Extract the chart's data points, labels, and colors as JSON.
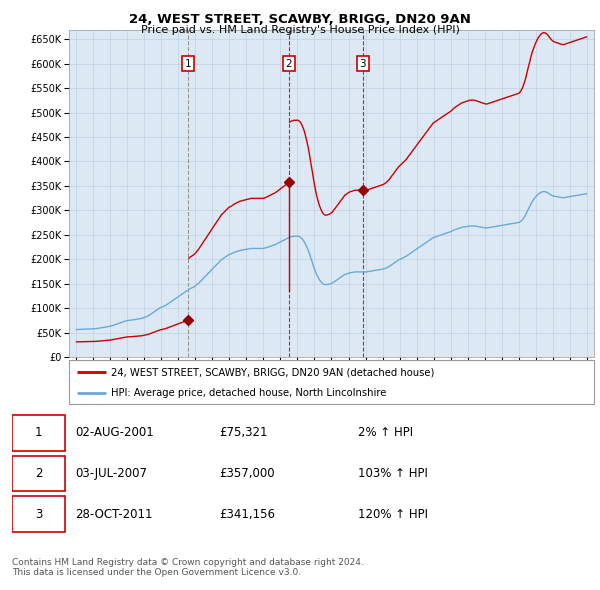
{
  "title": "24, WEST STREET, SCAWBY, BRIGG, DN20 9AN",
  "subtitle": "Price paid vs. HM Land Registry's House Price Index (HPI)",
  "plot_bg_color": "#dce9f5",
  "ylim": [
    0,
    670000
  ],
  "hpi_color": "#6aaad4",
  "price_color": "#cc0000",
  "sale_marker_color": "#990000",
  "grid_color": "#bbccdd",
  "sale_dates_num": [
    2001.58,
    2007.5,
    2011.83
  ],
  "sale_prices": [
    75321,
    357000,
    341156
  ],
  "sale_labels": [
    "1",
    "2",
    "3"
  ],
  "vline1_color": "#888888",
  "vline23_color": "#cc0000",
  "footer_text": "Contains HM Land Registry data © Crown copyright and database right 2024.\nThis data is licensed under the Open Government Licence v3.0.",
  "table_rows": [
    [
      "1",
      "02-AUG-2001",
      "£75,321",
      "2% ↑ HPI"
    ],
    [
      "2",
      "03-JUL-2007",
      "£357,000",
      "103% ↑ HPI"
    ],
    [
      "3",
      "28-OCT-2011",
      "£341,156",
      "120% ↑ HPI"
    ]
  ],
  "hpi_data_years": [
    1995.04,
    1995.12,
    1995.21,
    1995.29,
    1995.38,
    1995.46,
    1995.54,
    1995.63,
    1995.71,
    1995.79,
    1995.88,
    1995.96,
    1996.04,
    1996.12,
    1996.21,
    1996.29,
    1996.38,
    1996.46,
    1996.54,
    1996.63,
    1996.71,
    1996.79,
    1996.88,
    1996.96,
    1997.04,
    1997.12,
    1997.21,
    1997.29,
    1997.38,
    1997.46,
    1997.54,
    1997.63,
    1997.71,
    1997.79,
    1997.88,
    1997.96,
    1998.04,
    1998.12,
    1998.21,
    1998.29,
    1998.38,
    1998.46,
    1998.54,
    1998.63,
    1998.71,
    1998.79,
    1998.88,
    1998.96,
    1999.04,
    1999.12,
    1999.21,
    1999.29,
    1999.38,
    1999.46,
    1999.54,
    1999.63,
    1999.71,
    1999.79,
    1999.88,
    1999.96,
    2000.04,
    2000.12,
    2000.21,
    2000.29,
    2000.38,
    2000.46,
    2000.54,
    2000.63,
    2000.71,
    2000.79,
    2000.88,
    2000.96,
    2001.04,
    2001.12,
    2001.21,
    2001.29,
    2001.38,
    2001.46,
    2001.54,
    2001.63,
    2001.71,
    2001.79,
    2001.88,
    2001.96,
    2002.04,
    2002.12,
    2002.21,
    2002.29,
    2002.38,
    2002.46,
    2002.54,
    2002.63,
    2002.71,
    2002.79,
    2002.88,
    2002.96,
    2003.04,
    2003.12,
    2003.21,
    2003.29,
    2003.38,
    2003.46,
    2003.54,
    2003.63,
    2003.71,
    2003.79,
    2003.88,
    2003.96,
    2004.04,
    2004.12,
    2004.21,
    2004.29,
    2004.38,
    2004.46,
    2004.54,
    2004.63,
    2004.71,
    2004.79,
    2004.88,
    2004.96,
    2005.04,
    2005.12,
    2005.21,
    2005.29,
    2005.38,
    2005.46,
    2005.54,
    2005.63,
    2005.71,
    2005.79,
    2005.88,
    2005.96,
    2006.04,
    2006.12,
    2006.21,
    2006.29,
    2006.38,
    2006.46,
    2006.54,
    2006.63,
    2006.71,
    2006.79,
    2006.88,
    2006.96,
    2007.04,
    2007.12,
    2007.21,
    2007.29,
    2007.38,
    2007.46,
    2007.54,
    2007.63,
    2007.71,
    2007.79,
    2007.88,
    2007.96,
    2008.04,
    2008.12,
    2008.21,
    2008.29,
    2008.38,
    2008.46,
    2008.54,
    2008.63,
    2008.71,
    2008.79,
    2008.88,
    2008.96,
    2009.04,
    2009.12,
    2009.21,
    2009.29,
    2009.38,
    2009.46,
    2009.54,
    2009.63,
    2009.71,
    2009.79,
    2009.88,
    2009.96,
    2010.04,
    2010.12,
    2010.21,
    2010.29,
    2010.38,
    2010.46,
    2010.54,
    2010.63,
    2010.71,
    2010.79,
    2010.88,
    2010.96,
    2011.04,
    2011.12,
    2011.21,
    2011.29,
    2011.38,
    2011.46,
    2011.54,
    2011.63,
    2011.71,
    2011.79,
    2011.88,
    2011.96,
    2012.04,
    2012.12,
    2012.21,
    2012.29,
    2012.38,
    2012.46,
    2012.54,
    2012.63,
    2012.71,
    2012.79,
    2012.88,
    2012.96,
    2013.04,
    2013.12,
    2013.21,
    2013.29,
    2013.38,
    2013.46,
    2013.54,
    2013.63,
    2013.71,
    2013.79,
    2013.88,
    2013.96,
    2014.04,
    2014.12,
    2014.21,
    2014.29,
    2014.38,
    2014.46,
    2014.54,
    2014.63,
    2014.71,
    2014.79,
    2014.88,
    2014.96,
    2015.04,
    2015.12,
    2015.21,
    2015.29,
    2015.38,
    2015.46,
    2015.54,
    2015.63,
    2015.71,
    2015.79,
    2015.88,
    2015.96,
    2016.04,
    2016.12,
    2016.21,
    2016.29,
    2016.38,
    2016.46,
    2016.54,
    2016.63,
    2016.71,
    2016.79,
    2016.88,
    2016.96,
    2017.04,
    2017.12,
    2017.21,
    2017.29,
    2017.38,
    2017.46,
    2017.54,
    2017.63,
    2017.71,
    2017.79,
    2017.88,
    2017.96,
    2018.04,
    2018.12,
    2018.21,
    2018.29,
    2018.38,
    2018.46,
    2018.54,
    2018.63,
    2018.71,
    2018.79,
    2018.88,
    2018.96,
    2019.04,
    2019.12,
    2019.21,
    2019.29,
    2019.38,
    2019.46,
    2019.54,
    2019.63,
    2019.71,
    2019.79,
    2019.88,
    2019.96,
    2020.04,
    2020.12,
    2020.21,
    2020.29,
    2020.38,
    2020.46,
    2020.54,
    2020.63,
    2020.71,
    2020.79,
    2020.88,
    2020.96,
    2021.04,
    2021.12,
    2021.21,
    2021.29,
    2021.38,
    2021.46,
    2021.54,
    2021.63,
    2021.71,
    2021.79,
    2021.88,
    2021.96,
    2022.04,
    2022.12,
    2022.21,
    2022.29,
    2022.38,
    2022.46,
    2022.54,
    2022.63,
    2022.71,
    2022.79,
    2022.88,
    2022.96,
    2023.04,
    2023.12,
    2023.21,
    2023.29,
    2023.38,
    2023.46,
    2023.54,
    2023.63,
    2023.71,
    2023.79,
    2023.88,
    2023.96,
    2024.04,
    2024.12,
    2024.21,
    2024.29,
    2024.38,
    2024.46,
    2024.54,
    2024.63,
    2024.71,
    2024.79,
    2024.88,
    2024.96
  ],
  "hpi_data_values": [
    56000,
    56200,
    56400,
    56500,
    56600,
    56700,
    56800,
    57000,
    57200,
    57300,
    57400,
    57500,
    57600,
    57800,
    58000,
    58500,
    59000,
    59500,
    60000,
    60500,
    61000,
    61500,
    62000,
    62500,
    63000,
    64000,
    65000,
    66000,
    67000,
    68000,
    69000,
    70000,
    71000,
    72000,
    73000,
    74000,
    74500,
    75000,
    75200,
    75500,
    76000,
    76500,
    77000,
    77500,
    78000,
    78500,
    79000,
    80000,
    81000,
    82000,
    83500,
    85000,
    87000,
    89000,
    91000,
    93000,
    95000,
    97000,
    99000,
    101000,
    102000,
    103000,
    104500,
    106000,
    108000,
    110000,
    112000,
    114000,
    116000,
    118000,
    120000,
    122000,
    124000,
    126000,
    128000,
    130000,
    132000,
    134000,
    136000,
    138000,
    140000,
    141000,
    142500,
    144000,
    146000,
    148500,
    151000,
    154000,
    157000,
    160000,
    163000,
    166000,
    169000,
    172000,
    175000,
    178000,
    181000,
    184000,
    187000,
    190000,
    193000,
    196000,
    199000,
    201000,
    203000,
    205000,
    207000,
    209000,
    210000,
    211000,
    212500,
    214000,
    215000,
    216000,
    217000,
    218000,
    218500,
    219000,
    219500,
    220000,
    220500,
    221000,
    221500,
    222000,
    222000,
    222000,
    222000,
    222000,
    222000,
    222000,
    222000,
    222000,
    222500,
    223000,
    224000,
    225000,
    226000,
    227000,
    228000,
    229000,
    230000,
    231500,
    233000,
    234500,
    236000,
    237500,
    239000,
    240500,
    242000,
    243500,
    245000,
    246000,
    246500,
    247000,
    247000,
    247000,
    247000,
    246000,
    244000,
    241000,
    237000,
    232000,
    226000,
    219000,
    211000,
    202000,
    193000,
    184000,
    176000,
    169000,
    163000,
    158000,
    154000,
    151000,
    149000,
    148000,
    148000,
    148500,
    149000,
    150000,
    151000,
    153000,
    155000,
    157000,
    159000,
    161000,
    163000,
    165000,
    167000,
    169000,
    170000,
    171000,
    172000,
    172500,
    173000,
    173500,
    174000,
    174000,
    174000,
    174000,
    174000,
    174000,
    174000,
    174000,
    174000,
    174500,
    175000,
    175500,
    176000,
    176500,
    177000,
    177500,
    178000,
    178500,
    179000,
    179500,
    180000,
    181000,
    182000,
    183500,
    185000,
    187000,
    189000,
    191000,
    193000,
    195000,
    197000,
    199000,
    200000,
    201500,
    203000,
    204500,
    206000,
    208000,
    210000,
    212000,
    214000,
    216000,
    218000,
    220000,
    222000,
    224000,
    226000,
    228000,
    230000,
    232000,
    234000,
    236000,
    238000,
    240000,
    242000,
    244000,
    245000,
    246000,
    247000,
    248000,
    249000,
    250000,
    251000,
    252000,
    253000,
    254000,
    255000,
    256000,
    257000,
    258500,
    260000,
    261000,
    262000,
    263000,
    264000,
    265000,
    265500,
    266000,
    266500,
    267000,
    267500,
    268000,
    268000,
    268000,
    268000,
    267500,
    267000,
    266500,
    266000,
    265500,
    265000,
    264500,
    264000,
    264000,
    264500,
    265000,
    265500,
    266000,
    266500,
    267000,
    267500,
    268000,
    268500,
    269000,
    269500,
    270000,
    270500,
    271000,
    271500,
    272000,
    272500,
    273000,
    273500,
    274000,
    274500,
    275000,
    276000,
    278000,
    281000,
    285000,
    290000,
    296000,
    302000,
    308000,
    314000,
    319000,
    323000,
    327000,
    330000,
    333000,
    335000,
    337000,
    338000,
    338500,
    338000,
    337000,
    335500,
    333500,
    331500,
    330000,
    329000,
    328500,
    328000,
    327500,
    327000,
    326500,
    326000,
    326000,
    326500,
    327000,
    327500,
    328000,
    328500,
    329000,
    329500,
    330000,
    330500,
    331000,
    331500,
    332000,
    332500,
    333000,
    333500,
    334000
  ]
}
